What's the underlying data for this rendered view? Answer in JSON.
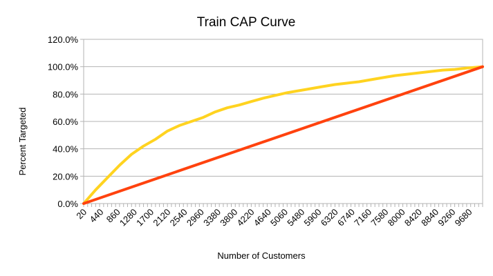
{
  "chart_data": {
    "type": "line",
    "title": "Train CAP Curve",
    "xlabel": "Number of Customers",
    "ylabel": "Percent Targeted",
    "x_tick_labels": [
      "20",
      "440",
      "860",
      "1280",
      "1700",
      "2120",
      "2540",
      "2960",
      "3380",
      "3800",
      "4220",
      "4640",
      "5060",
      "5480",
      "5900",
      "6320",
      "6740",
      "7160",
      "7580",
      "8000",
      "8420",
      "8840",
      "9260",
      "9680"
    ],
    "y_tick_labels": [
      "0.0%",
      "20.0%",
      "40.0%",
      "60.0%",
      "80.0%",
      "100.0%",
      "120.0%"
    ],
    "xlim": [
      0,
      10000
    ],
    "ylim": [
      0,
      1.2
    ],
    "grid": "horizontal",
    "legend": "none",
    "series": [
      {
        "color": "#ffd320",
        "x": [
          0,
          300,
          600,
          900,
          1200,
          1500,
          1800,
          2100,
          2400,
          2700,
          3000,
          3300,
          3600,
          3900,
          4200,
          4500,
          4800,
          5100,
          5400,
          5700,
          6000,
          6300,
          6600,
          6900,
          7200,
          7500,
          7800,
          8100,
          8400,
          8700,
          9000,
          9300,
          9600,
          10000
        ],
        "y": [
          0.0,
          0.1,
          0.19,
          0.28,
          0.36,
          0.42,
          0.47,
          0.53,
          0.57,
          0.6,
          0.63,
          0.67,
          0.7,
          0.72,
          0.745,
          0.77,
          0.79,
          0.81,
          0.825,
          0.84,
          0.855,
          0.87,
          0.88,
          0.89,
          0.905,
          0.92,
          0.935,
          0.945,
          0.955,
          0.965,
          0.975,
          0.98,
          0.99,
          1.0
        ]
      },
      {
        "color": "#ff420e",
        "x": [
          0,
          10000
        ],
        "y": [
          0.0,
          1.0
        ]
      }
    ]
  }
}
